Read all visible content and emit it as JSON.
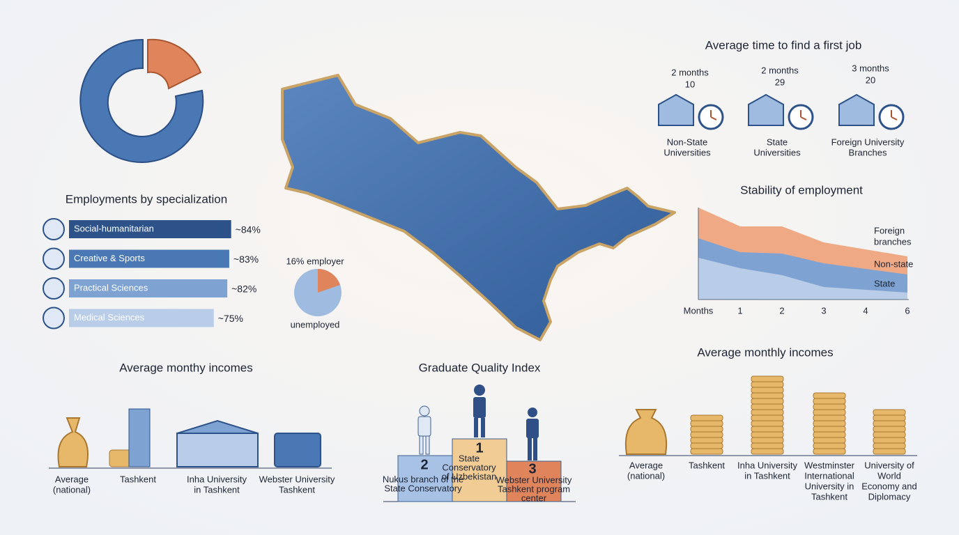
{
  "employment_status": {
    "employed_label": "16% employer",
    "unemployed_label": "unemployed"
  },
  "specialization": {
    "title": "Employments by specialization",
    "items": [
      {
        "name": "Social-humanitarian",
        "value": 84,
        "value_label": "~84%"
      },
      {
        "name": "Creative & Sports",
        "value": 83,
        "value_label": "~83%"
      },
      {
        "name": "Practical Sciences",
        "value": 82,
        "value_label": "~82%"
      },
      {
        "name": "Medical Sciences",
        "value": 75,
        "value_label": "~75%"
      }
    ]
  },
  "first_job": {
    "title": "Average time to find a first job",
    "groups": [
      {
        "time": "2 months",
        "count": 10,
        "name": [
          "Non-State",
          "Universities"
        ]
      },
      {
        "time": "2 months",
        "count": 29,
        "name": [
          "State",
          "Universities"
        ]
      },
      {
        "time": "3 months",
        "count": 20,
        "name": [
          "Foreign University",
          "Branches"
        ]
      }
    ]
  },
  "stability": {
    "title": "Stability of employment",
    "series_labels": [
      [
        "Foreign",
        "branches"
      ],
      [
        "Non-state"
      ],
      [
        "State"
      ]
    ],
    "x_labels": [
      "Months",
      1,
      2,
      3,
      4,
      6
    ]
  },
  "incomes_left": {
    "title": "Average monthy incomes",
    "labels": [
      [
        "Average",
        "(national)"
      ],
      [
        "Tashkent"
      ],
      [
        "Inha University",
        "in Tashkent"
      ],
      [
        "Webster University",
        "Tashkent"
      ]
    ]
  },
  "quality_index": {
    "title": "Graduate Quality Index",
    "places": [
      {
        "rank": 1,
        "name": [
          "State",
          "Conservatory",
          "of Uzbekistan"
        ]
      },
      {
        "rank": 2,
        "name": [
          "Nukus branch of the",
          "State Conservatory"
        ]
      },
      {
        "rank": 3,
        "name": [
          "Webster University",
          "Tashkent program",
          "center"
        ]
      }
    ]
  },
  "incomes_right": {
    "title": "Average monthly incomes",
    "labels": [
      [
        "Average",
        "(national)"
      ],
      [
        "Tashkent"
      ],
      [
        "Inha University",
        "in Tashkent"
      ],
      [
        "Westminster",
        "International",
        "University in",
        "Tashkent"
      ],
      [
        "University of",
        "World",
        "Economy and",
        "Diplomacy"
      ]
    ]
  }
}
